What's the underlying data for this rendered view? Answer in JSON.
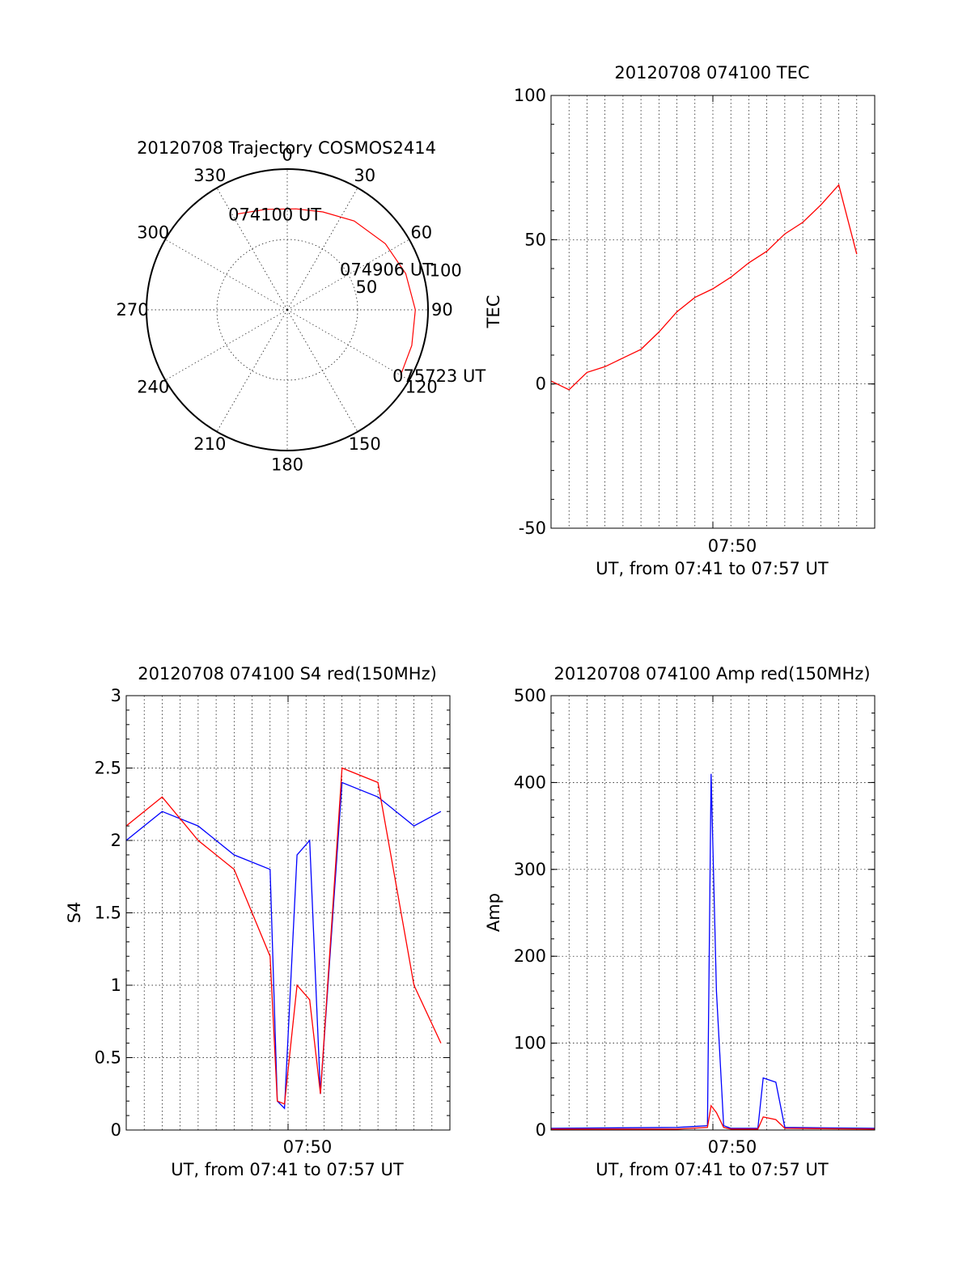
{
  "chart_data": [
    {
      "type": "polar",
      "title": "20120708 Trajectory COSMOS2414",
      "azimuth_labels": [
        "0",
        "30",
        "60",
        "90",
        "120",
        "150",
        "180",
        "210",
        "240",
        "270",
        "300",
        "330"
      ],
      "radial_labels": [
        "50",
        "100"
      ],
      "r_max": 100,
      "track": {
        "color": "#ff0000",
        "points": [
          {
            "az": 332,
            "r": 77
          },
          {
            "az": 348,
            "r": 73
          },
          {
            "az": 5,
            "r": 72
          },
          {
            "az": 20,
            "r": 74
          },
          {
            "az": 37,
            "r": 79
          },
          {
            "az": 56,
            "r": 84
          },
          {
            "az": 73,
            "r": 88
          },
          {
            "az": 90,
            "r": 91
          },
          {
            "az": 106,
            "r": 92
          },
          {
            "az": 120,
            "r": 93
          }
        ],
        "annotations": [
          {
            "text": "074100 UT",
            "az": 332,
            "r": 77
          },
          {
            "text": "074906 UT",
            "az": 56,
            "r": 52
          },
          {
            "text": "075723 UT",
            "az": 120,
            "r": 93
          }
        ]
      }
    },
    {
      "type": "line",
      "title": "20120708 074100 TEC",
      "xlabel": "UT, from 07:41 to 07:57 UT",
      "ylabel": "TEC",
      "xtick_label": "07:50",
      "x_range": [
        "07:41",
        "07:59"
      ],
      "ylim": [
        -50,
        100
      ],
      "yticks": [
        "-50",
        "0",
        "50",
        "100"
      ],
      "grid": true,
      "series": [
        {
          "color": "#ff0000",
          "x": [
            "07:41",
            "07:42",
            "07:43",
            "07:44",
            "07:45",
            "07:46",
            "07:47",
            "07:48",
            "07:49",
            "07:50",
            "07:51",
            "07:52",
            "07:53",
            "07:54",
            "07:55",
            "07:56",
            "07:57",
            "07:58"
          ],
          "y": [
            1,
            -2,
            4,
            6,
            9,
            12,
            18,
            25,
            30,
            33,
            37,
            42,
            46,
            52,
            56,
            62,
            69,
            45
          ]
        }
      ]
    },
    {
      "type": "line",
      "title": "20120708 074100 S4 red(150MHz)",
      "xlabel": "UT, from 07:41 to 07:57 UT",
      "ylabel": "S4",
      "xtick_label": "07:50",
      "x_range": [
        "07:41",
        "07:59"
      ],
      "ylim": [
        0,
        3
      ],
      "yticks": [
        "0",
        "0.5",
        "1",
        "1.5",
        "2",
        "2.5",
        "3"
      ],
      "grid": true,
      "series": [
        {
          "color": "#0000ff",
          "x": [
            "07:41",
            "07:43",
            "07:45",
            "07:47",
            "07:49",
            "07:49.4",
            "07:49.8",
            "07:50.5",
            "07:51.2",
            "07:51.8",
            "07:53",
            "07:55",
            "07:57",
            "07:58.5"
          ],
          "y": [
            2.0,
            2.2,
            2.1,
            1.9,
            1.8,
            0.2,
            0.15,
            1.9,
            2.0,
            0.25,
            2.4,
            2.3,
            2.1,
            2.2
          ]
        },
        {
          "color": "#ff0000",
          "x": [
            "07:41",
            "07:43",
            "07:45",
            "07:47",
            "07:49",
            "07:49.4",
            "07:49.8",
            "07:50.5",
            "07:51.2",
            "07:51.8",
            "07:53",
            "07:55",
            "07:57",
            "07:58.5"
          ],
          "y": [
            2.1,
            2.3,
            2.0,
            1.8,
            1.2,
            0.2,
            0.18,
            1.0,
            0.9,
            0.25,
            2.5,
            2.4,
            1.0,
            0.6
          ]
        }
      ]
    },
    {
      "type": "line",
      "title": "20120708 074100 Amp red(150MHz)",
      "xlabel": "UT, from 07:41 to 07:57 UT",
      "ylabel": "Amp",
      "xtick_label": "07:50",
      "x_range": [
        "07:41",
        "07:59"
      ],
      "ylim": [
        0,
        500
      ],
      "yticks": [
        "0",
        "100",
        "200",
        "300",
        "400",
        "500"
      ],
      "grid": true,
      "series": [
        {
          "color": "#0000ff",
          "x": [
            "07:41",
            "07:48",
            "07:49.7",
            "07:49.9",
            "07:50.2",
            "07:50.6",
            "07:51",
            "07:52.5",
            "07:52.8",
            "07:53.5",
            "07:54",
            "07:59"
          ],
          "y": [
            2,
            3,
            5,
            410,
            160,
            5,
            2,
            2,
            60,
            55,
            3,
            2
          ]
        },
        {
          "color": "#ff0000",
          "x": [
            "07:41",
            "07:48",
            "07:49.7",
            "07:49.9",
            "07:50.2",
            "07:50.6",
            "07:51",
            "07:52.5",
            "07:52.8",
            "07:53.5",
            "07:54",
            "07:59"
          ],
          "y": [
            1,
            1,
            3,
            28,
            20,
            3,
            1,
            1,
            15,
            12,
            2,
            1
          ]
        }
      ]
    }
  ]
}
